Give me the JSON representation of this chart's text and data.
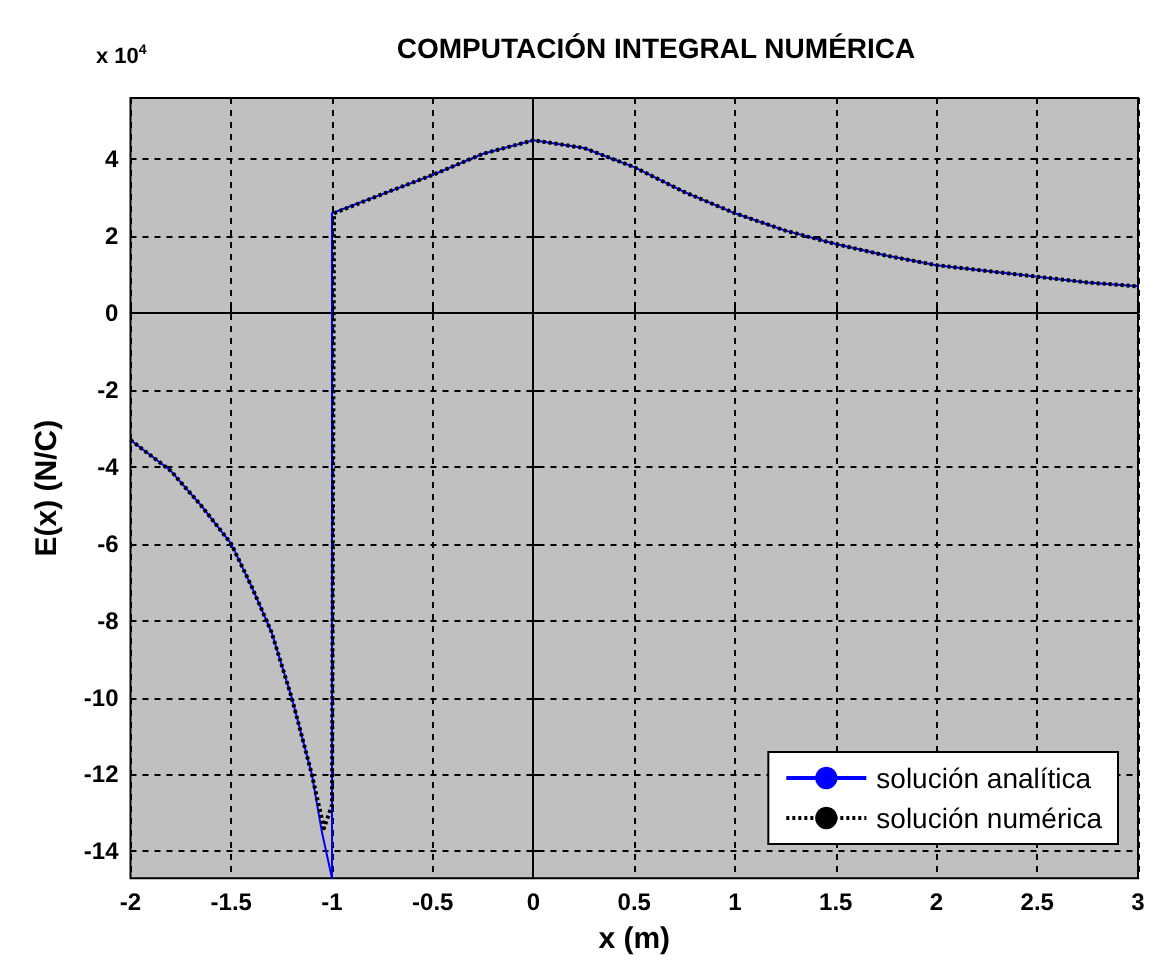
{
  "chart_data": {
    "type": "line",
    "title": "COMPUTACIÓN INTEGRAL NUMÉRICA",
    "xlabel": "x (m)",
    "ylabel": "E(x) (N/C)",
    "annotations": [
      "x 10$^{4}$"
    ],
    "xlim": [
      -2,
      3
    ],
    "xticks": [
      -2,
      -1.5,
      -1,
      -0.5,
      0,
      0.5,
      1,
      1.5,
      2,
      2.5,
      3
    ],
    "ylim": [
      -14.7,
      5.6
    ],
    "yticks": [
      -14,
      -12,
      -10,
      -8,
      -6,
      -4,
      -2,
      0,
      2,
      4
    ],
    "grid": true,
    "legend": "bottom right",
    "marker": "none",
    "series": [
      {
        "name": "solución analítica",
        "color": "#0000ff",
        "line_style": "solid",
        "x": [
          -2,
          -1.8,
          -1.65,
          -1.5,
          -1.4,
          -1.3,
          -1.2,
          -1.1,
          -1.05,
          -1.0,
          -1.0,
          -0.75,
          -0.5,
          -0.25,
          0,
          0.25,
          0.5,
          0.75,
          1,
          1.25,
          1.5,
          1.75,
          2,
          2.25,
          2.5,
          2.75,
          3
        ],
        "values": [
          -3.3,
          -4.1,
          -5,
          -6,
          -7.1,
          -8.3,
          -10,
          -12,
          -13.5,
          -14.7,
          2.6,
          3.1,
          3.6,
          4.15,
          4.5,
          4.3,
          3.8,
          3.15,
          2.6,
          2.15,
          1.8,
          1.5,
          1.25,
          1.1,
          0.95,
          0.8,
          0.7
        ]
      },
      {
        "name": "solución numérica",
        "color": "#000000",
        "line_style": "dotted",
        "x": [
          -2,
          -1.8,
          -1.65,
          -1.5,
          -1.4,
          -1.3,
          -1.2,
          -1.1,
          -1.04,
          -1.0,
          -0.99,
          -0.75,
          -0.5,
          -0.25,
          0,
          0.25,
          0.5,
          0.75,
          1,
          1.25,
          1.5,
          1.75,
          2,
          2.25,
          2.5,
          2.75,
          3
        ],
        "values": [
          -3.3,
          -4.1,
          -5,
          -6,
          -7.1,
          -8.3,
          -10,
          -12,
          -13.4,
          -12.8,
          2.6,
          3.1,
          3.6,
          4.15,
          4.5,
          4.3,
          3.8,
          3.15,
          2.6,
          2.15,
          1.8,
          1.5,
          1.25,
          1.1,
          0.95,
          0.8,
          0.7
        ]
      }
    ]
  }
}
